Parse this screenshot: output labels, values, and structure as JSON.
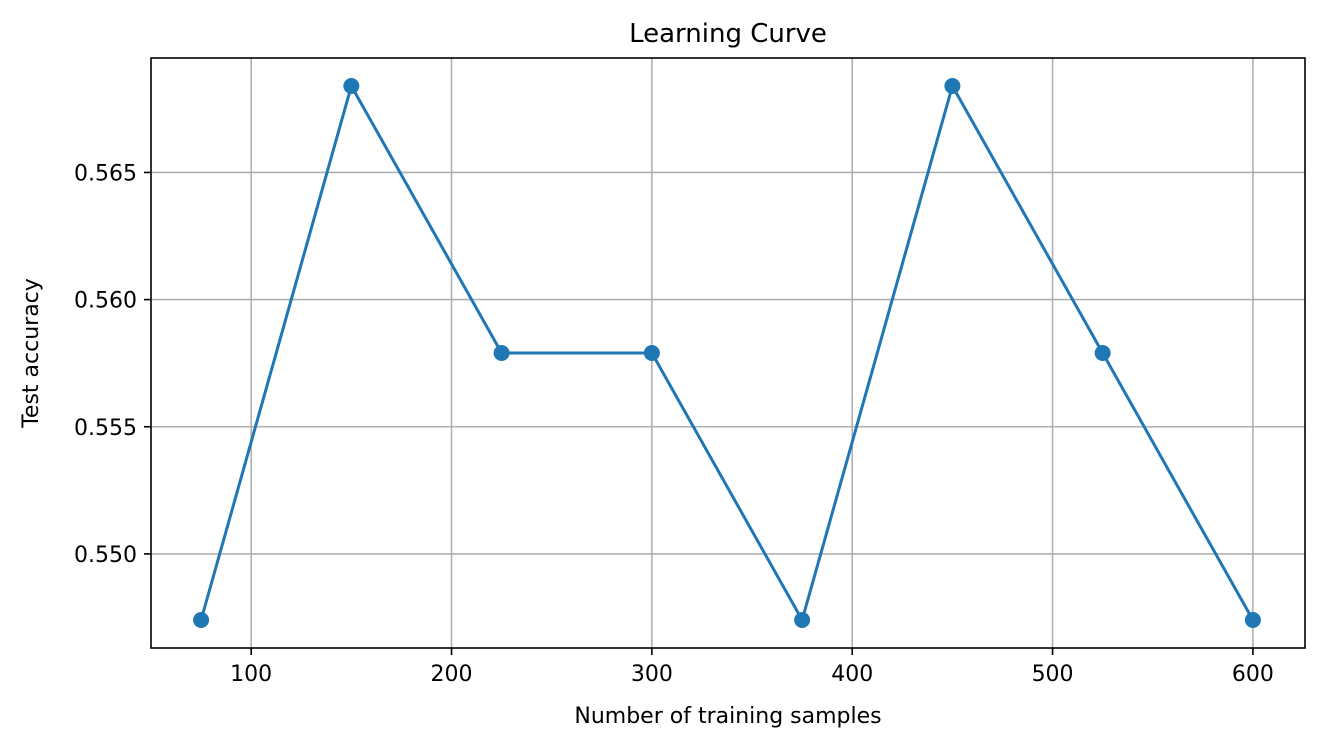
{
  "chart_data": {
    "type": "line",
    "title": "Learning Curve",
    "xlabel": "Number of training samples",
    "ylabel": "Test accuracy",
    "x": [
      75,
      150,
      225,
      300,
      375,
      450,
      525,
      600
    ],
    "series": [
      {
        "values": [
          0.5474,
          0.5684,
          0.5579,
          0.5579,
          0.5474,
          0.5684,
          0.5579,
          0.5474
        ],
        "color": "#1f77b4",
        "marker": "circle"
      }
    ],
    "xticks": [
      100,
      200,
      300,
      400,
      500,
      600
    ],
    "xtick_labels": [
      "100",
      "200",
      "300",
      "400",
      "500",
      "600"
    ],
    "yticks": [
      0.55,
      0.555,
      0.56,
      0.565
    ],
    "ytick_labels": [
      "0.550",
      "0.555",
      "0.560",
      "0.565"
    ],
    "xlim": [
      50,
      626
    ],
    "ylim": [
      0.5463,
      0.5695
    ],
    "grid": true,
    "grid_color": "#b0b0b0",
    "legend": false
  }
}
